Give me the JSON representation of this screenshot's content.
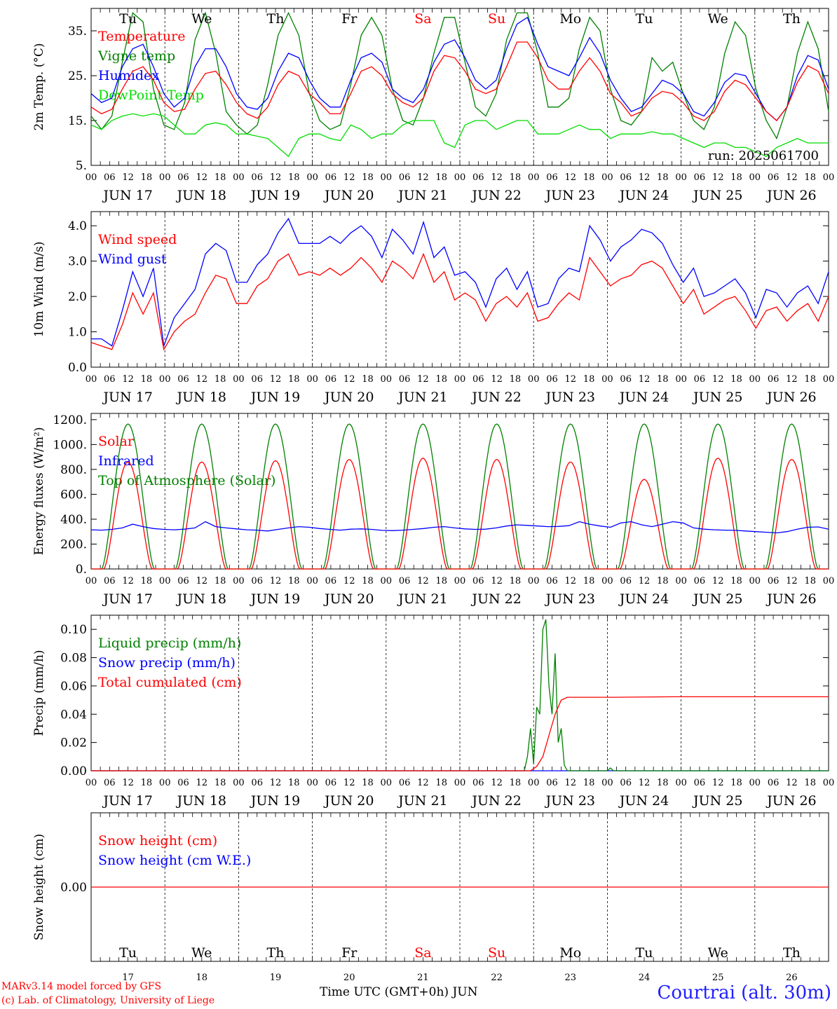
{
  "chart_data": [
    {
      "type": "line",
      "panel": "temperature",
      "ylabel": "2m Temp. (°C)",
      "ylim": [
        5,
        40
      ],
      "yticks": [
        "5.",
        "15.",
        "25.",
        "35."
      ],
      "weekday_labels": [
        "Tu",
        "We",
        "Th",
        "Fr",
        "Sa",
        "Su",
        "Mo",
        "Tu",
        "We",
        "Th"
      ],
      "weekday_colors": [
        "#000000",
        "#000000",
        "#000000",
        "#000000",
        "#ff0000",
        "#ff0000",
        "#000000",
        "#000000",
        "#000000",
        "#000000"
      ],
      "run_label": "run: 2025061700",
      "legend": [
        {
          "name": "Temperature",
          "color": "#ff0000"
        },
        {
          "name": "Vigne temp",
          "color": "#008000"
        },
        {
          "name": "Humidex",
          "color": "#0000ff"
        },
        {
          "name": "DewPoint Temp",
          "color": "#00dd00"
        }
      ],
      "series": [
        {
          "name": "Temperature",
          "color": "#ff0000",
          "values": [
            18,
            16.5,
            17.5,
            22,
            26,
            27,
            24,
            19,
            17,
            17.5,
            22,
            25.5,
            26,
            23,
            19,
            16.5,
            15.5,
            18,
            23,
            26,
            25,
            21,
            19,
            16.5,
            16.5,
            21,
            26,
            27,
            25,
            21,
            19,
            18,
            20,
            26,
            29.5,
            29,
            26,
            22,
            21,
            22,
            27,
            32.5,
            32.5,
            29,
            24,
            22,
            22,
            26,
            29,
            26,
            21,
            19,
            16,
            17,
            20,
            21.5,
            21,
            19,
            16,
            15,
            17,
            21.5,
            24,
            23,
            20,
            17,
            15,
            18,
            23.5,
            27.2,
            26,
            21
          ]
        },
        {
          "name": "Vigne temp",
          "color": "#008000",
          "values": [
            16,
            13,
            16,
            28,
            39,
            37,
            22,
            14,
            13,
            19,
            33,
            39,
            30,
            17,
            14,
            12,
            14,
            23,
            34,
            39,
            34,
            21,
            15,
            13,
            14,
            23,
            34,
            38,
            34,
            22,
            15,
            14,
            20,
            30,
            38,
            38,
            28,
            18,
            16,
            21,
            33,
            39,
            39,
            30,
            18,
            18,
            20,
            31,
            38,
            35,
            22,
            15,
            14,
            17,
            29,
            26,
            28,
            21,
            15,
            13,
            18,
            30,
            37,
            34,
            22,
            15,
            11,
            18,
            30,
            37,
            31,
            17
          ]
        },
        {
          "name": "Humidex",
          "color": "#0000ff",
          "values": [
            21,
            19,
            20,
            27,
            31,
            32,
            27,
            21,
            18,
            20,
            27,
            31,
            31,
            27,
            21,
            18,
            17.5,
            20,
            26,
            30,
            29,
            24,
            20,
            18,
            18,
            24,
            29,
            30,
            28,
            22,
            20,
            19,
            22,
            28,
            32,
            33,
            29,
            24,
            22,
            24,
            31,
            36.5,
            38,
            32,
            27,
            26,
            25,
            29,
            33.5,
            30,
            24,
            20,
            17,
            18,
            21,
            24,
            23,
            21,
            17,
            16,
            19,
            23.5,
            25.5,
            25,
            21,
            17,
            15,
            18,
            25,
            29.5,
            28.5,
            22
          ]
        },
        {
          "name": "DewPoint Temp",
          "color": "#00dd00",
          "values": [
            14,
            13,
            15,
            16,
            16.5,
            16,
            16.5,
            16,
            14,
            12,
            12,
            14,
            14.5,
            14,
            12,
            12,
            11.5,
            11,
            9,
            7,
            11,
            12,
            12,
            11,
            10.5,
            14,
            13,
            11,
            12,
            12,
            14,
            15,
            15,
            15,
            10,
            9,
            14,
            15,
            15,
            13,
            14,
            15,
            15,
            12,
            12,
            12,
            13,
            14,
            13,
            13,
            11,
            12,
            12,
            12,
            12.5,
            12,
            12,
            11,
            10,
            9,
            10,
            10,
            9,
            9,
            8,
            7,
            9,
            10,
            11,
            10,
            10,
            10
          ]
        }
      ]
    },
    {
      "type": "line",
      "panel": "wind",
      "ylabel": "10m Wind (m/s)",
      "ylim": [
        0,
        4.4
      ],
      "yticks": [
        "0.0",
        "1.0",
        "2.0",
        "3.0",
        "4.0"
      ],
      "legend": [
        {
          "name": "Wind speed",
          "color": "#ff0000"
        },
        {
          "name": "Wind gust",
          "color": "#0000ff"
        }
      ],
      "series": [
        {
          "name": "Wind speed",
          "color": "#ff0000",
          "values": [
            0.7,
            0.6,
            0.5,
            1.2,
            2.1,
            1.5,
            2.1,
            0.5,
            1.0,
            1.3,
            1.5,
            2.1,
            2.6,
            2.5,
            1.8,
            1.8,
            2.3,
            2.5,
            3.0,
            3.2,
            2.6,
            2.7,
            2.6,
            2.8,
            2.6,
            2.8,
            3.1,
            2.8,
            2.4,
            3.0,
            2.8,
            2.5,
            3.2,
            2.4,
            2.7,
            1.9,
            2.1,
            1.9,
            1.3,
            1.8,
            2.0,
            1.7,
            2.1,
            1.3,
            1.4,
            1.8,
            2.1,
            1.9,
            3.1,
            2.7,
            2.3,
            2.5,
            2.6,
            2.9,
            3.0,
            2.8,
            2.3,
            1.8,
            2.2,
            1.5,
            1.7,
            1.9,
            2.0,
            1.6,
            1.1,
            1.6,
            1.7,
            1.3,
            1.6,
            1.8,
            1.3,
            2.0
          ]
        },
        {
          "name": "Wind gust",
          "color": "#0000ff",
          "values": [
            0.8,
            0.8,
            0.6,
            1.6,
            2.7,
            2.0,
            2.8,
            0.6,
            1.4,
            1.8,
            2.2,
            3.2,
            3.5,
            3.3,
            2.4,
            2.4,
            2.9,
            3.2,
            3.8,
            4.2,
            3.5,
            3.5,
            3.5,
            3.7,
            3.5,
            3.8,
            4.0,
            3.7,
            3.1,
            3.9,
            3.6,
            3.2,
            4.1,
            3.1,
            3.4,
            2.6,
            2.7,
            2.4,
            1.7,
            2.5,
            2.8,
            2.2,
            2.7,
            1.7,
            1.8,
            2.5,
            2.8,
            2.7,
            4.0,
            3.6,
            3.0,
            3.4,
            3.6,
            3.9,
            3.8,
            3.5,
            2.9,
            2.4,
            2.8,
            2.0,
            2.1,
            2.3,
            2.5,
            2.1,
            1.4,
            2.2,
            2.1,
            1.7,
            2.1,
            2.3,
            1.8,
            2.7
          ]
        }
      ]
    },
    {
      "type": "line",
      "panel": "energy",
      "ylabel": "Energy fluxes (W/m²)",
      "ylim": [
        0,
        1250
      ],
      "yticks": [
        "0.",
        "200.",
        "400.",
        "600.",
        "800.",
        "1000.",
        "1200."
      ],
      "legend": [
        {
          "name": "Solar",
          "color": "#ff0000"
        },
        {
          "name": "Infrared",
          "color": "#0000ff"
        },
        {
          "name": "Top of Atmosphere (Solar)",
          "color": "#008000"
        }
      ],
      "daily_peaks": {
        "toa": [
          1165,
          1165,
          1165,
          1165,
          1165,
          1165,
          1165,
          1165,
          1165,
          1165
        ],
        "solar": [
          860,
          860,
          870,
          880,
          890,
          880,
          860,
          720,
          890,
          880
        ]
      },
      "series": [
        {
          "name": "Infrared",
          "color": "#0000ff",
          "values": [
            315,
            312,
            318,
            330,
            360,
            340,
            325,
            318,
            315,
            320,
            330,
            380,
            340,
            330,
            322,
            315,
            312,
            305,
            318,
            330,
            340,
            335,
            325,
            318,
            312,
            320,
            322,
            318,
            310,
            308,
            312,
            318,
            325,
            335,
            340,
            330,
            322,
            318,
            320,
            330,
            345,
            355,
            350,
            345,
            340,
            342,
            348,
            380,
            360,
            345,
            335,
            370,
            380,
            355,
            340,
            360,
            380,
            370,
            330,
            320,
            315,
            312,
            310,
            305,
            300,
            295,
            290,
            300,
            320,
            335,
            338,
            320
          ]
        }
      ]
    },
    {
      "type": "line",
      "panel": "precip",
      "ylabel": "Precip (mm/h)",
      "ylim": [
        0,
        0.11
      ],
      "yticks": [
        "0.00",
        "0.02",
        "0.04",
        "0.06",
        "0.08",
        "0.10"
      ],
      "legend": [
        {
          "name": "Liquid precip (mm/h)",
          "color": "#008000"
        },
        {
          "name": "Snow precip (mm/h)",
          "color": "#0000ff"
        },
        {
          "name": "Total cumulated (cm)",
          "color": "#ff0000"
        }
      ],
      "series": [
        {
          "name": "Liquid precip (mm/h)",
          "color": "#008000",
          "x_hours": [
            0,
            141,
            142,
            143,
            144,
            145,
            146,
            147,
            148,
            149,
            150,
            151,
            152,
            153,
            154,
            155,
            156,
            168,
            169,
            170,
            240
          ],
          "values": [
            0,
            0,
            0.01,
            0.03,
            0.005,
            0.045,
            0.04,
            0.1,
            0.107,
            0.06,
            0.04,
            0.083,
            0.02,
            0.03,
            0.004,
            0,
            0,
            0,
            0.002,
            0,
            0
          ]
        },
        {
          "name": "Total cumulated (cm)",
          "color": "#ff0000",
          "x_hours": [
            0,
            143,
            145,
            147,
            149,
            151,
            153,
            155,
            160,
            170,
            190,
            240
          ],
          "values": [
            0,
            0,
            0.003,
            0.01,
            0.025,
            0.04,
            0.05,
            0.052,
            0.052,
            0.052,
            0.0523,
            0.0523
          ]
        },
        {
          "name": "Snow precip (mm/h)",
          "color": "#0000ff",
          "x_hours": [
            0,
            240
          ],
          "values": [
            0,
            0
          ]
        }
      ]
    },
    {
      "type": "line",
      "panel": "snow",
      "ylabel": "Snow height (cm)",
      "ylim": [
        -1,
        1
      ],
      "yticks": [
        "0.00"
      ],
      "legend": [
        {
          "name": "Snow height (cm)",
          "color": "#ff0000"
        },
        {
          "name": "Snow height (cm W.E.)",
          "color": "#0000ff"
        }
      ],
      "series": [
        {
          "name": "Snow height (cm)",
          "color": "#ff0000",
          "x_hours": [
            0,
            240
          ],
          "values": [
            0,
            0
          ]
        }
      ]
    }
  ],
  "axes": {
    "hour_ticks": [
      "00",
      "06",
      "12",
      "18"
    ],
    "end_tick": "00",
    "date_labels": [
      "JUN 17",
      "JUN 18",
      "JUN 19",
      "JUN 20",
      "JUN 21",
      "JUN 22",
      "JUN 23",
      "JUN 24",
      "JUN 25",
      "JUN 26"
    ],
    "day_numbers": [
      "17",
      "18",
      "19",
      "20",
      "21",
      "22",
      "23",
      "24",
      "25",
      "26"
    ]
  },
  "footer": {
    "model": "MARv3.14 model forced by GFS",
    "credit": "(c) Lab. of Climatology, University of Liege",
    "time_axis": "Time UTC (GMT+0h) JUN",
    "station": "Courtrai (alt. 30m)"
  }
}
